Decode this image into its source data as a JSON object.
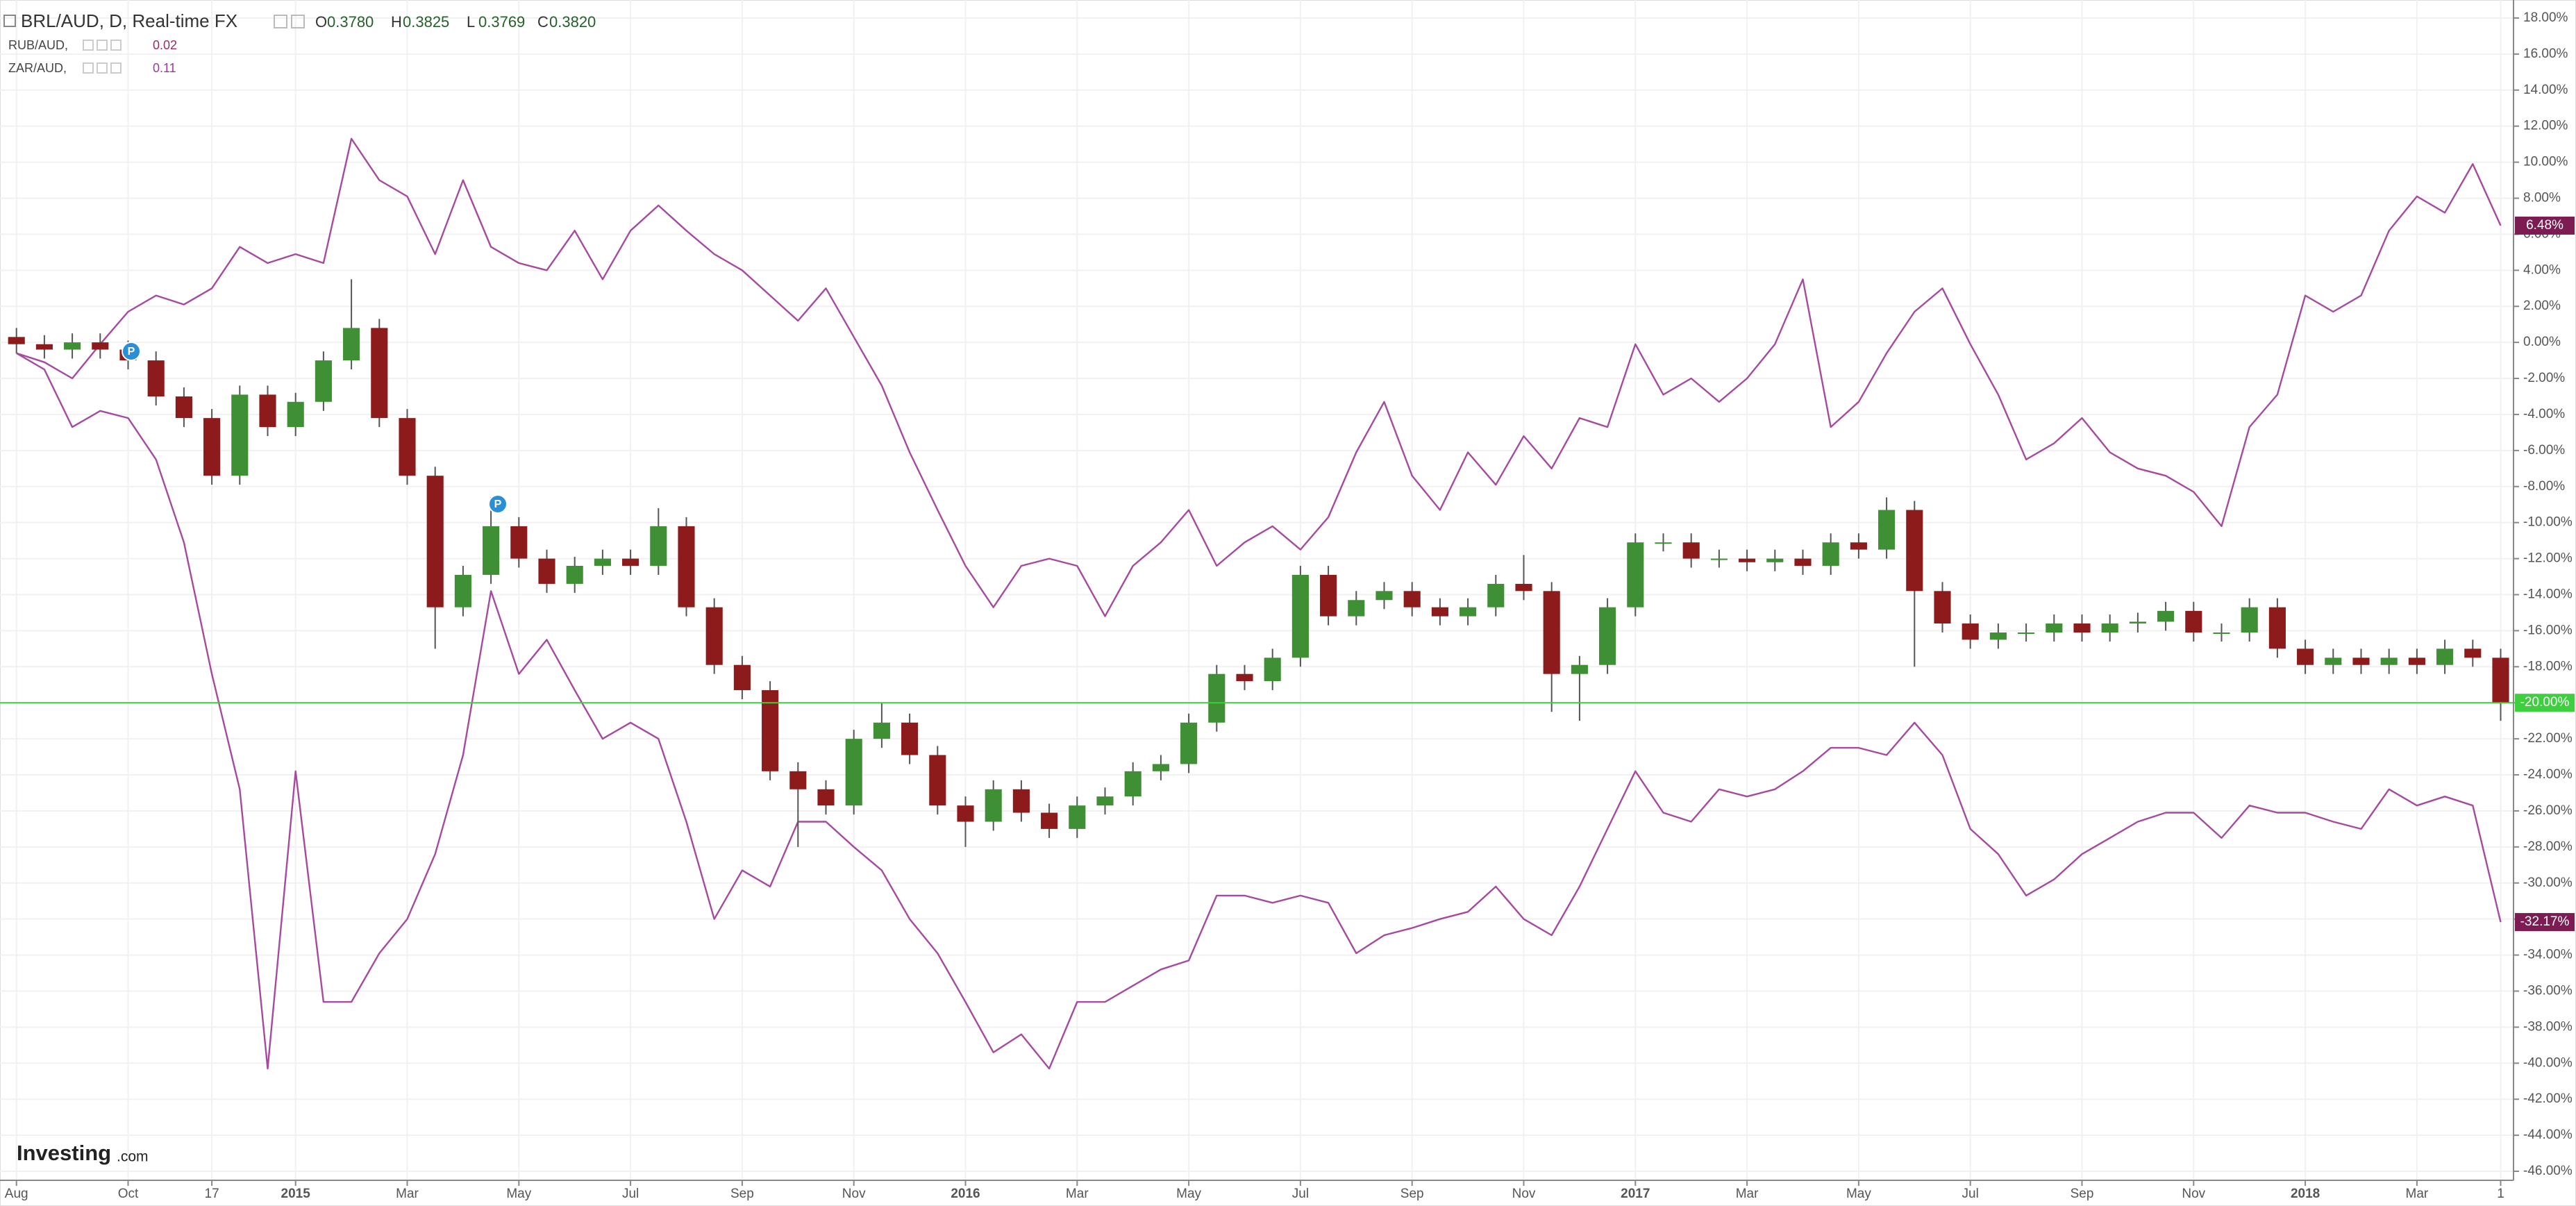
{
  "chart_data": {
    "type": "candlestick",
    "title": "BRL/AUD, D, Real-time FX",
    "ohlc_header": [
      {
        "label": "O",
        "value": "0.3780"
      },
      {
        "label": "H",
        "value": "0.3825"
      },
      {
        "label": "L",
        "value": "0.3769"
      },
      {
        "label": "C",
        "value": "0.3820"
      }
    ],
    "events": [
      {
        "label": "P"
      },
      {
        "label": "P"
      }
    ],
    "logo": {
      "main": "Investing",
      "suffix": ".com"
    },
    "categories": [
      "Aug",
      null,
      null,
      null,
      "Oct",
      null,
      null,
      "17",
      null,
      null,
      "2015",
      null,
      null,
      null,
      "Mar",
      null,
      null,
      null,
      "May",
      null,
      null,
      null,
      "Jul",
      null,
      null,
      null,
      "Sep",
      null,
      null,
      null,
      "Nov",
      null,
      null,
      null,
      "2016",
      null,
      null,
      null,
      "Mar",
      null,
      null,
      null,
      "May",
      null,
      null,
      null,
      "Jul",
      null,
      null,
      null,
      "Sep",
      null,
      null,
      null,
      "Nov",
      null,
      null,
      null,
      "2017",
      null,
      null,
      null,
      "Mar",
      null,
      null,
      null,
      "May",
      null,
      null,
      null,
      "Jul",
      null,
      null,
      null,
      "Sep",
      null,
      null,
      null,
      "Nov",
      null,
      null,
      null,
      "2018",
      null,
      null,
      null,
      "Mar",
      null,
      null,
      "1"
    ],
    "open": [
      0.3,
      -0.1,
      -0.4,
      0,
      -0.4,
      -1,
      -3,
      -4.2,
      -7.4,
      -2.9,
      -4.7,
      -3.3,
      -1,
      0.8,
      -4.2,
      -7.4,
      -14.7,
      -12.9,
      -10.2,
      -12,
      -13.4,
      -12.4,
      -12,
      -12.4,
      -10.2,
      -14.7,
      -17.9,
      -19.3,
      -23.8,
      -24.8,
      -25.7,
      -22,
      -21.1,
      -22.9,
      -25.7,
      -26.6,
      -24.8,
      -26.1,
      -27,
      -25.7,
      -25.2,
      -23.8,
      -23.4,
      -21.1,
      -18.4,
      -18.8,
      -17.5,
      -12.9,
      -15.2,
      -14.3,
      -13.8,
      -14.7,
      -15.2,
      -14.7,
      -13.4,
      -13.8,
      -18.4,
      -17.9,
      -14.7,
      -11.1,
      -11.1,
      -12,
      -12,
      -12.2,
      -12,
      -12.4,
      -11.1,
      -11.5,
      -9.3,
      -13.8,
      -15.6,
      -16.5,
      -16.1,
      -16.1,
      -15.6,
      -16.1,
      -15.6,
      -15.5,
      -14.9,
      -16.1,
      -16.1,
      -14.7,
      -17,
      -17.9,
      -17.5,
      -17.9,
      -17.5,
      -17.9,
      -17,
      -17.5
    ],
    "high": [
      0.8,
      0.4,
      0.5,
      0.5,
      0.1,
      -0.5,
      -2.5,
      -3.7,
      -2.4,
      -2.4,
      -2.8,
      -0.5,
      3.5,
      1.3,
      -3.7,
      -6.9,
      -12.4,
      -8.6,
      -9.7,
      -11.5,
      -11.9,
      -11.5,
      -11.5,
      -9.2,
      -9.7,
      -14.2,
      -17.4,
      -18.8,
      -23.3,
      -24.3,
      -21.5,
      -20,
      -20.6,
      -22.4,
      -25.2,
      -24.3,
      -24.3,
      -25.6,
      -25.2,
      -24.7,
      -23.3,
      -22.9,
      -20.6,
      -17.9,
      -17.9,
      -17,
      -12.4,
      -12.4,
      -13.8,
      -13.3,
      -13.3,
      -14.2,
      -14.2,
      -12.9,
      -11.8,
      -13.3,
      -17.4,
      -14.2,
      -10.6,
      -10.6,
      -10.6,
      -11.5,
      -11.5,
      -11.5,
      -11.5,
      -10.6,
      -10.6,
      -8.6,
      -8.8,
      -13.3,
      -15.1,
      -15.6,
      -15.6,
      -15.1,
      -15.1,
      -15.1,
      -15,
      -14.4,
      -14.4,
      -15.6,
      -14.2,
      -14.2,
      -16.5,
      -17,
      -17,
      -17,
      -17,
      -16.5,
      -16.5,
      -17
    ],
    "low": [
      -0.6,
      -0.9,
      -0.9,
      -0.9,
      -1.5,
      -3.5,
      -4.7,
      -7.9,
      -7.9,
      -5.2,
      -5.2,
      -3.8,
      -1.5,
      -4.7,
      -7.9,
      -17,
      -15.2,
      -13.4,
      -12.5,
      -13.9,
      -13.9,
      -12.9,
      -12.9,
      -12.9,
      -15.2,
      -18.4,
      -19.8,
      -24.3,
      -28,
      -26.2,
      -26.2,
      -22.5,
      -23.4,
      -26.2,
      -28,
      -27.1,
      -26.6,
      -27.5,
      -27.5,
      -26.2,
      -25.7,
      -24.3,
      -23.9,
      -21.6,
      -19.3,
      -19.3,
      -18,
      -15.7,
      -15.7,
      -14.8,
      -15.2,
      -15.7,
      -15.7,
      -15.2,
      -14.3,
      -20.5,
      -21,
      -18.4,
      -15.2,
      -11.6,
      -12.5,
      -12.5,
      -12.7,
      -12.7,
      -12.9,
      -12.9,
      -12,
      -12,
      -18,
      -16.1,
      -17,
      -17,
      -16.6,
      -16.6,
      -16.6,
      -16.6,
      -16.1,
      -16,
      -16.6,
      -16.6,
      -16.6,
      -17.5,
      -18.4,
      -18.4,
      -18.4,
      -18.4,
      -18.4,
      -18.4,
      -18,
      -21
    ],
    "close": [
      -0.1,
      -0.4,
      0,
      -0.4,
      -1,
      -3,
      -4.2,
      -7.4,
      -2.9,
      -4.7,
      -3.3,
      -1,
      0.8,
      -4.2,
      -7.4,
      -14.7,
      -12.9,
      -10.2,
      -12,
      -13.4,
      -12.4,
      -12,
      -12.4,
      -10.2,
      -14.7,
      -17.9,
      -19.3,
      -23.8,
      -24.8,
      -25.7,
      -22,
      -21.1,
      -22.9,
      -25.7,
      -26.6,
      -24.8,
      -26.1,
      -27,
      -25.7,
      -25.2,
      -23.8,
      -23.4,
      -21.1,
      -18.4,
      -18.8,
      -17.5,
      -12.9,
      -15.2,
      -14.3,
      -13.8,
      -14.7,
      -15.2,
      -14.7,
      -13.4,
      -13.8,
      -18.4,
      -17.9,
      -14.7,
      -11.1,
      -11.1,
      -12,
      -12,
      -12.2,
      -12,
      -12.4,
      -11.1,
      -11.5,
      -9.3,
      -13.8,
      -15.6,
      -16.5,
      -16.1,
      -16.1,
      -15.6,
      -16.1,
      -15.6,
      -15.5,
      -14.9,
      -16.1,
      -16.1,
      -14.7,
      -17,
      -17.9,
      -17.5,
      -17.9,
      -17.5,
      -17.9,
      -17,
      -17.5,
      -20
    ],
    "close_labels": [
      null,
      null,
      null,
      null,
      null,
      null,
      null,
      null,
      null,
      null,
      null,
      null,
      null,
      null,
      null,
      null,
      null,
      null,
      null,
      null,
      null,
      null,
      null,
      null,
      null,
      null,
      null,
      null,
      null,
      null,
      null,
      null,
      null,
      null,
      null,
      null,
      null,
      null,
      null,
      null,
      null,
      null,
      null,
      null,
      null,
      null,
      null,
      null,
      null,
      null,
      null,
      null,
      null,
      null,
      null,
      null,
      null,
      null,
      null,
      null,
      null,
      null,
      null,
      null,
      null,
      null,
      null,
      null,
      null,
      null,
      null,
      null,
      null,
      null,
      null,
      null,
      null,
      null,
      null,
      null,
      null,
      null,
      null,
      null,
      null,
      null,
      null,
      null,
      null,
      "-20.00%"
    ],
    "up_color": "#3f8f34",
    "down_color": "#8e1b1b",
    "wick_color": "#555555",
    "last_color": "#3ecf3e",
    "series": [
      {
        "name": "RUB/AUD,",
        "price": "0.02",
        "color": "#a54a9f",
        "label_color": "#9b2a6c",
        "tag_color": "#7d1b53",
        "values": [
          -0.6,
          -1.5,
          -4.7,
          -3.8,
          -4.2,
          -6.5,
          -11.1,
          -18.4,
          -24.8,
          -40.3,
          -23.8,
          -36.6,
          -36.6,
          -33.9,
          -32,
          -28.4,
          -22.9,
          -13.8,
          -18.4,
          -16.5,
          -19.3,
          -22,
          -21.1,
          -22,
          -26.6,
          -32,
          -29.3,
          -30.2,
          -26.6,
          -26.6,
          -28,
          -29.3,
          -32,
          -33.9,
          -36.6,
          -39.4,
          -38.4,
          -40.3,
          -36.6,
          -36.6,
          -35.7,
          -34.8,
          -34.3,
          -30.7,
          -30.7,
          -31.1,
          -30.7,
          -31.1,
          -33.9,
          -32.9,
          -32.5,
          -32,
          -31.6,
          -30.2,
          -32,
          -32.9,
          -30.2,
          -27,
          -23.8,
          -26.1,
          -26.6,
          -24.8,
          -25.2,
          -24.8,
          -23.8,
          -22.5,
          -22.5,
          -22.9,
          -21.1,
          -22.9,
          -27,
          -28.4,
          -30.7,
          -29.8,
          -28.4,
          -27.5,
          -26.6,
          -26.1,
          -26.1,
          -27.5,
          -25.7,
          -26.1,
          -26.1,
          -26.6,
          -27,
          -24.8,
          -25.7,
          -25.2,
          -25.7,
          -32.17
        ],
        "value_labels": [
          null,
          null,
          null,
          null,
          null,
          null,
          null,
          null,
          null,
          null,
          null,
          null,
          null,
          null,
          null,
          null,
          null,
          null,
          null,
          null,
          null,
          null,
          null,
          null,
          null,
          null,
          null,
          null,
          null,
          null,
          null,
          null,
          null,
          null,
          null,
          null,
          null,
          null,
          null,
          null,
          null,
          null,
          null,
          null,
          null,
          null,
          null,
          null,
          null,
          null,
          null,
          null,
          null,
          null,
          null,
          null,
          null,
          null,
          null,
          null,
          null,
          null,
          null,
          null,
          null,
          null,
          null,
          null,
          null,
          null,
          null,
          null,
          null,
          null,
          null,
          null,
          null,
          null,
          null,
          null,
          null,
          null,
          null,
          null,
          null,
          null,
          null,
          null,
          null,
          "-32.17%"
        ]
      },
      {
        "name": "ZAR/AUD,",
        "price": "0.11",
        "color": "#a54a9f",
        "label_color": "#9b3a9b",
        "tag_color": "#7d1b53",
        "values": [
          -0.6,
          -1.1,
          -2,
          -0.1,
          1.7,
          2.6,
          2.1,
          3,
          5.3,
          4.4,
          4.9,
          4.4,
          11.3,
          9,
          8.1,
          4.9,
          9,
          5.3,
          4.4,
          4,
          6.2,
          3.5,
          6.2,
          7.6,
          6.2,
          4.9,
          4,
          2.6,
          1.2,
          3,
          0.3,
          -2.4,
          -6.1,
          -9.3,
          -12.4,
          -14.7,
          -12.4,
          -12,
          -12.4,
          -15.2,
          -12.4,
          -11.1,
          -9.3,
          -12.4,
          -11.1,
          -10.2,
          -11.5,
          -9.7,
          -6.1,
          -3.3,
          -7.4,
          -9.3,
          -6.1,
          -7.9,
          -5.2,
          -7,
          -4.2,
          -4.7,
          -0.1,
          -2.9,
          -2,
          -3.3,
          -2,
          -0.1,
          3.5,
          -4.7,
          -3.3,
          -0.6,
          1.7,
          3,
          -0.1,
          -2.9,
          -6.5,
          -5.6,
          -4.2,
          -6.1,
          -7,
          -7.4,
          -8.3,
          -10.2,
          -4.7,
          -2.9,
          2.6,
          1.7,
          2.6,
          6.2,
          8.1,
          7.2,
          9.9,
          6.48
        ],
        "value_labels": [
          null,
          null,
          null,
          null,
          null,
          null,
          null,
          null,
          null,
          null,
          null,
          null,
          null,
          null,
          null,
          null,
          null,
          null,
          null,
          null,
          null,
          null,
          null,
          null,
          null,
          null,
          null,
          null,
          null,
          null,
          null,
          null,
          null,
          null,
          null,
          null,
          null,
          null,
          null,
          null,
          null,
          null,
          null,
          null,
          null,
          null,
          null,
          null,
          null,
          null,
          null,
          null,
          null,
          null,
          null,
          null,
          null,
          null,
          null,
          null,
          null,
          null,
          null,
          null,
          null,
          null,
          null,
          null,
          null,
          null,
          null,
          null,
          null,
          null,
          null,
          null,
          null,
          null,
          null,
          null,
          null,
          null,
          null,
          null,
          null,
          null,
          null,
          null,
          null,
          "6.48%"
        ]
      }
    ],
    "ylim": [
      -46.5,
      19
    ],
    "yticks": [
      {
        "value": 18,
        "label": "18.00%"
      },
      {
        "value": 16,
        "label": "16.00%"
      },
      {
        "value": 14,
        "label": "14.00%"
      },
      {
        "value": 12,
        "label": "12.00%"
      },
      {
        "value": 10,
        "label": "10.00%"
      },
      {
        "value": 8,
        "label": "8.00%"
      },
      {
        "value": 6,
        "label": "6.00%"
      },
      {
        "value": 4,
        "label": "4.00%"
      },
      {
        "value": 2,
        "label": "2.00%"
      },
      {
        "value": 0,
        "label": "0.00%"
      },
      {
        "value": -2,
        "label": "-2.00%"
      },
      {
        "value": -4,
        "label": "-4.00%"
      },
      {
        "value": -6,
        "label": "-6.00%"
      },
      {
        "value": -8,
        "label": "-8.00%"
      },
      {
        "value": -10,
        "label": "-10.00%"
      },
      {
        "value": -12,
        "label": "-12.00%"
      },
      {
        "value": -14,
        "label": "-14.00%"
      },
      {
        "value": -16,
        "label": "-16.00%"
      },
      {
        "value": -18,
        "label": "-18.00%"
      },
      {
        "value": -20,
        "label": "-20.00%"
      },
      {
        "value": -22,
        "label": "-22.00%"
      },
      {
        "value": -24,
        "label": "-24.00%"
      },
      {
        "value": -26,
        "label": "-26.00%"
      },
      {
        "value": -28,
        "label": "-28.00%"
      },
      {
        "value": -30,
        "label": "-30.00%"
      },
      {
        "value": -32,
        "label": "-32.00%"
      },
      {
        "value": -34,
        "label": "-34.00%"
      },
      {
        "value": -36,
        "label": "-36.00%"
      },
      {
        "value": -38,
        "label": "-38.00%"
      },
      {
        "value": -40,
        "label": "-40.00%"
      },
      {
        "value": -42,
        "label": "-42.00%"
      },
      {
        "value": -44,
        "label": "-44.00%"
      },
      {
        "value": -46,
        "label": "-46.00%"
      }
    ],
    "grid": true
  }
}
